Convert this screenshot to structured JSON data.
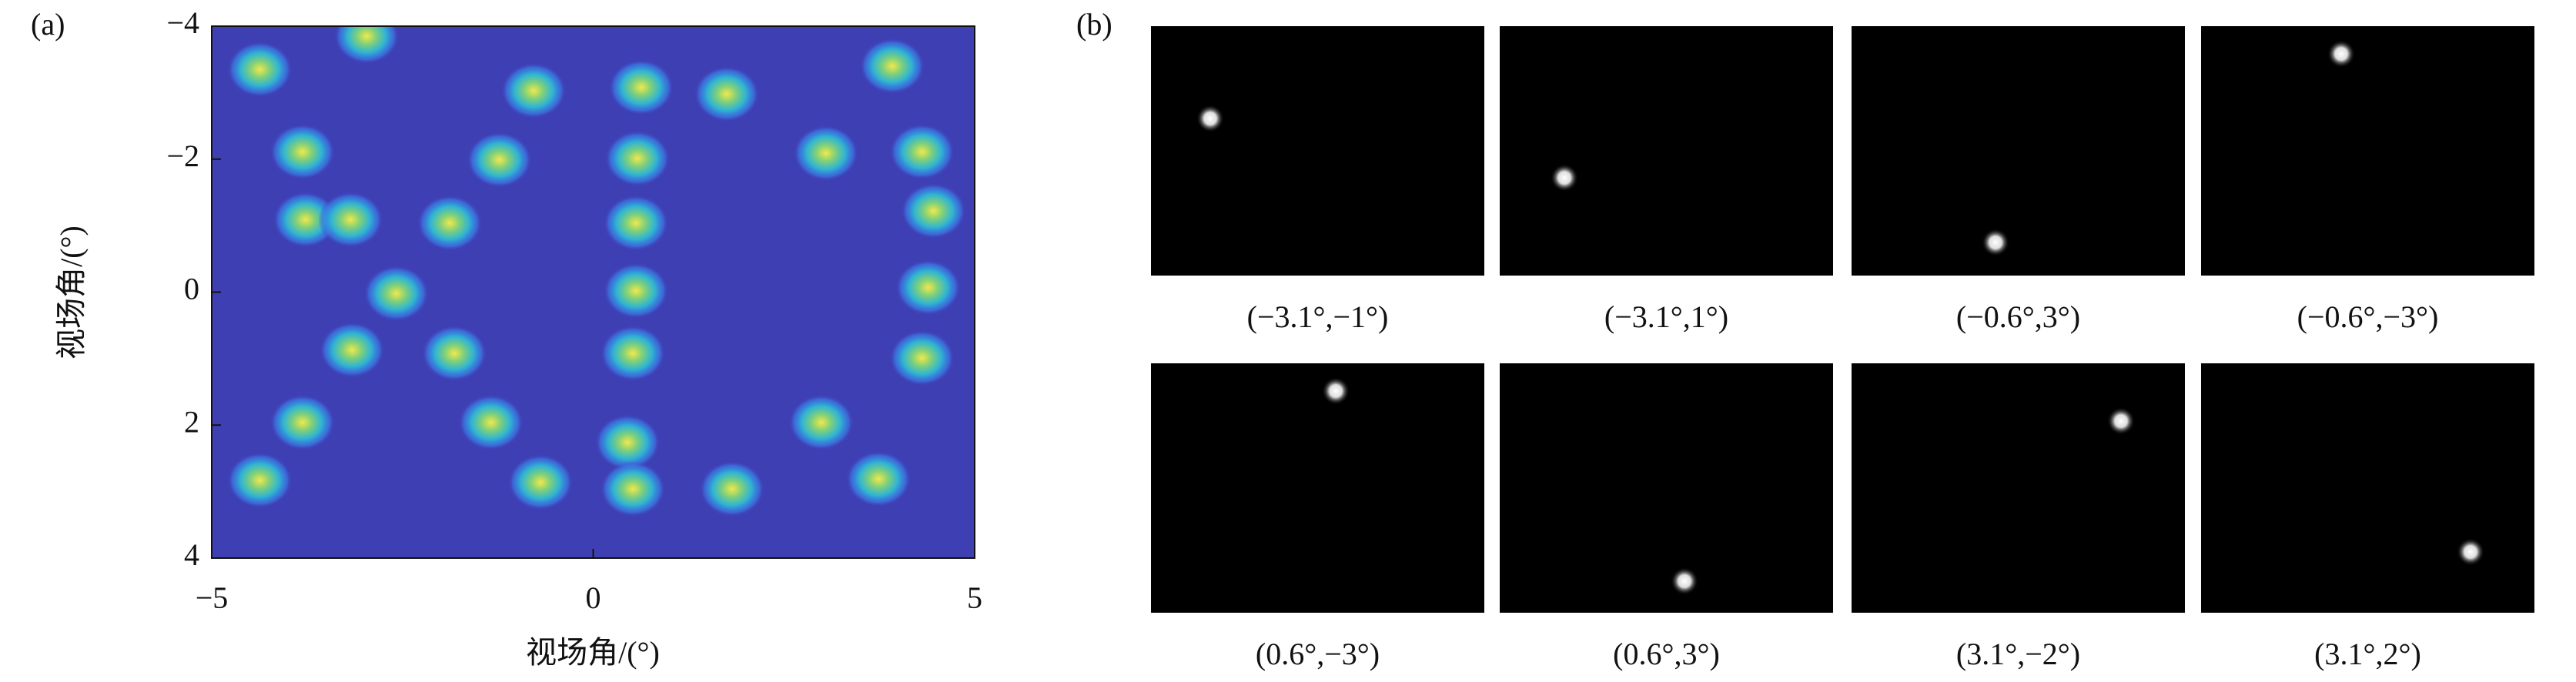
{
  "panel_labels": {
    "a": "(a)",
    "b": "(b)"
  },
  "chart_data": {
    "type": "heatmap",
    "xlabel": "视场角/(°)",
    "ylabel": "视场角/(°)",
    "xlim": [
      -5,
      5
    ],
    "ylim": [
      -4,
      4
    ],
    "y_inverted": true,
    "xticks": [
      {
        "value": -5,
        "label": "−5"
      },
      0,
      5
    ],
    "yticks": [
      {
        "value": -4,
        "label": "−4"
      },
      {
        "value": -2,
        "label": "−2"
      },
      0,
      2,
      4
    ],
    "background": "#3f3fb4",
    "spots": {
      "x": [
        -4.37,
        -2.97,
        -0.78,
        0.63,
        1.75,
        3.92,
        -3.81,
        -1.23,
        0.58,
        3.05,
        4.31,
        -3.77,
        -3.18,
        -1.88,
        0.56,
        4.46,
        -2.58,
        0.56,
        4.39,
        -3.16,
        -1.82,
        0.52,
        4.31,
        -3.81,
        -1.34,
        0.45,
        2.99,
        -4.37,
        -0.69,
        0.52,
        1.82,
        3.74
      ],
      "y": [
        -3.35,
        -3.85,
        -3.03,
        -3.08,
        -2.98,
        -3.4,
        -2.11,
        -1.99,
        -2.01,
        -2.09,
        -2.11,
        -1.09,
        -1.09,
        -1.04,
        -1.04,
        -1.22,
        0.02,
        -0.02,
        -0.07,
        0.87,
        0.92,
        0.92,
        0.99,
        1.96,
        1.96,
        2.26,
        1.96,
        2.83,
        2.86,
        2.96,
        2.96,
        2.81
      ]
    }
  },
  "images": [
    {
      "caption": "(−3.1°,−1°)"
    },
    {
      "caption": "(−3.1°,1°)"
    },
    {
      "caption": "(−0.6°,3°)"
    },
    {
      "caption": "(−0.6°,−3°)"
    },
    {
      "caption": "(0.6°,−3°)"
    },
    {
      "caption": "(0.6°,3°)"
    },
    {
      "caption": "(3.1°,−2°)"
    },
    {
      "caption": "(3.1°,2°)"
    }
  ]
}
